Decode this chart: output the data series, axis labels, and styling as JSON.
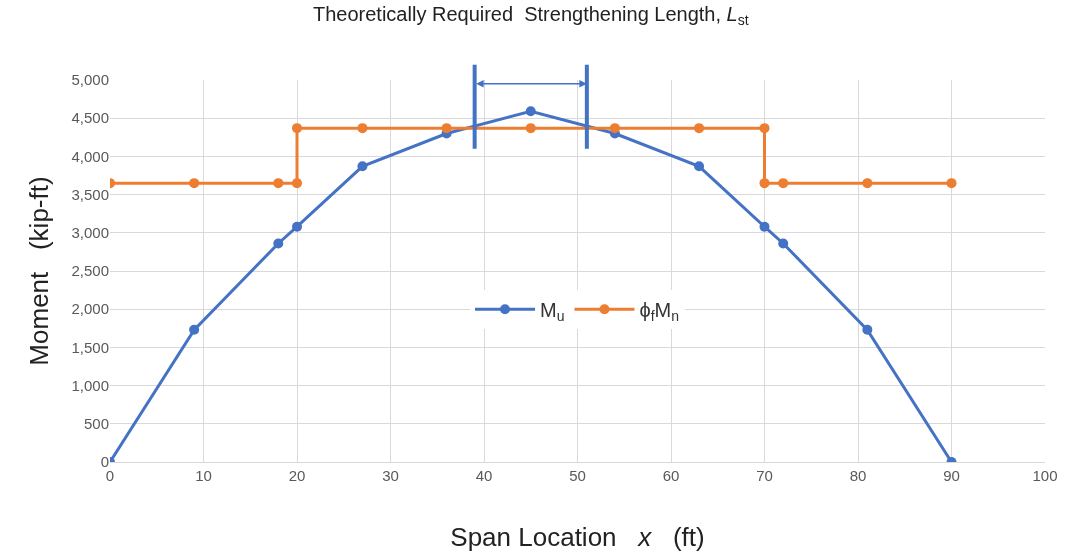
{
  "chart_data": {
    "type": "line",
    "xlabel": "Span Location   x   (ft)",
    "ylabel": "Moment   (kip-ft)",
    "series": [
      {
        "name": "M$_{u}$",
        "color": "#4472c4",
        "x": [
          0,
          9,
          18,
          20,
          27,
          36,
          45,
          54,
          63,
          70,
          72,
          81,
          90
        ],
        "values": [
          0,
          1730,
          2860,
          3080,
          3870,
          4300,
          4590,
          4300,
          3870,
          3080,
          2860,
          1730,
          0
        ]
      },
      {
        "name": "ϕ$_{f}$M$_{n}$",
        "color": "#ed7d31",
        "x": [
          0,
          9,
          18,
          20,
          20,
          27,
          36,
          45,
          54,
          63,
          70,
          70,
          72,
          81,
          90
        ],
        "values": [
          3650,
          3650,
          3650,
          3650,
          4370,
          4370,
          4370,
          4370,
          4370,
          4370,
          4370,
          3650,
          3650,
          3650,
          3650
        ]
      }
    ],
    "ref_lines": [
      {
        "axis": "x",
        "value": 39,
        "color": "#4472c4"
      },
      {
        "axis": "x",
        "value": 51,
        "color": "#4472c4"
      }
    ],
    "annotations": [
      "Theoretically Required  Strengthening Length, L$_{st}$"
    ],
    "xlim": [
      0,
      100
    ],
    "xticks": [
      0,
      10,
      20,
      30,
      40,
      50,
      60,
      70,
      80,
      90,
      100
    ],
    "ylim": [
      0,
      5000
    ],
    "yticks": [
      0,
      500,
      {
        "value": 1000,
        "label": "1,000"
      },
      {
        "value": 1500,
        "label": "1,500"
      },
      {
        "value": 2000,
        "label": "2,000"
      },
      {
        "value": 2500,
        "label": "2,500"
      },
      {
        "value": 3000,
        "label": "3,000"
      },
      {
        "value": 3500,
        "label": "3,500"
      },
      {
        "value": 4000,
        "label": "4,000"
      },
      {
        "value": 4500,
        "label": "4,500"
      },
      {
        "value": 5000,
        "label": "5,000"
      }
    ],
    "grid": true,
    "legend": "center",
    "marker": "circle",
    "line_style": "solid"
  }
}
